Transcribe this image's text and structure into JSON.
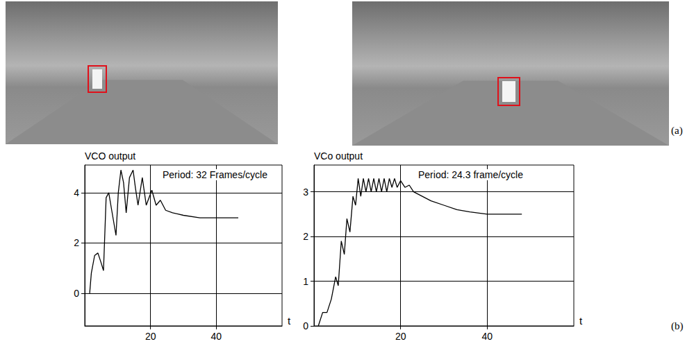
{
  "panel_labels": [
    "(a)",
    "(b)"
  ],
  "chart_data": [
    {
      "type": "line",
      "ylabel": "VCO output",
      "xlabel": "t",
      "annotation": "Period: 32 Frames/cycle",
      "x": [
        1.5,
        2,
        3,
        4,
        5,
        5.7,
        6.5,
        7.3,
        8.2,
        9.5,
        10.2,
        11,
        11.8,
        12.6,
        13.6,
        14.7,
        15.4,
        16.2,
        17.5,
        18.7,
        20.4,
        21.7,
        23,
        24.6,
        26.7,
        30,
        35,
        40,
        46.7
      ],
      "values": [
        0,
        0.8,
        1.5,
        1.6,
        1.2,
        0.9,
        3.8,
        4.0,
        3.3,
        2.3,
        4.0,
        4.9,
        4.4,
        3.2,
        4.6,
        4.9,
        4.2,
        3.5,
        4.6,
        3.5,
        4.1,
        3.5,
        3.7,
        3.3,
        3.2,
        3.1,
        3.0,
        3.0,
        3.0
      ],
      "color": "#000000",
      "xlim": [
        0,
        60
      ],
      "xticks": [
        20,
        40
      ],
      "ylim": [
        -1.3,
        5.1
      ],
      "yticks": [
        0,
        2,
        4
      ],
      "grid": true
    },
    {
      "type": "line",
      "ylabel": "VCo output",
      "xlabel": "t",
      "annotation": "Period: 24.3 frame/cycle",
      "x": [
        1,
        2,
        3,
        4,
        5,
        5.6,
        6.3,
        7,
        7.6,
        8.3,
        9,
        9.6,
        10.2,
        10.8,
        11.4,
        12,
        12.6,
        13.2,
        13.8,
        14.4,
        15,
        15.6,
        16.2,
        16.8,
        17.4,
        18,
        18.6,
        19.2,
        20,
        21,
        22,
        23,
        25,
        27,
        30,
        33,
        36,
        40,
        45,
        48
      ],
      "values": [
        0,
        0.3,
        0.3,
        0.6,
        1.1,
        0.9,
        1.9,
        1.6,
        2.4,
        2.1,
        2.9,
        2.7,
        3.3,
        2.9,
        3.3,
        3.0,
        3.3,
        3.0,
        3.3,
        3.0,
        3.3,
        3.0,
        3.3,
        3.0,
        3.3,
        3.1,
        3.3,
        3.1,
        3.25,
        3.1,
        3.15,
        3.0,
        2.9,
        2.8,
        2.7,
        2.6,
        2.55,
        2.5,
        2.5,
        2.5
      ],
      "color": "#000000",
      "xlim": [
        0,
        60
      ],
      "xticks": [
        20,
        40
      ],
      "ylim": [
        0,
        3.6
      ],
      "yticks": [
        0,
        1,
        2,
        3
      ],
      "grid": true
    }
  ]
}
